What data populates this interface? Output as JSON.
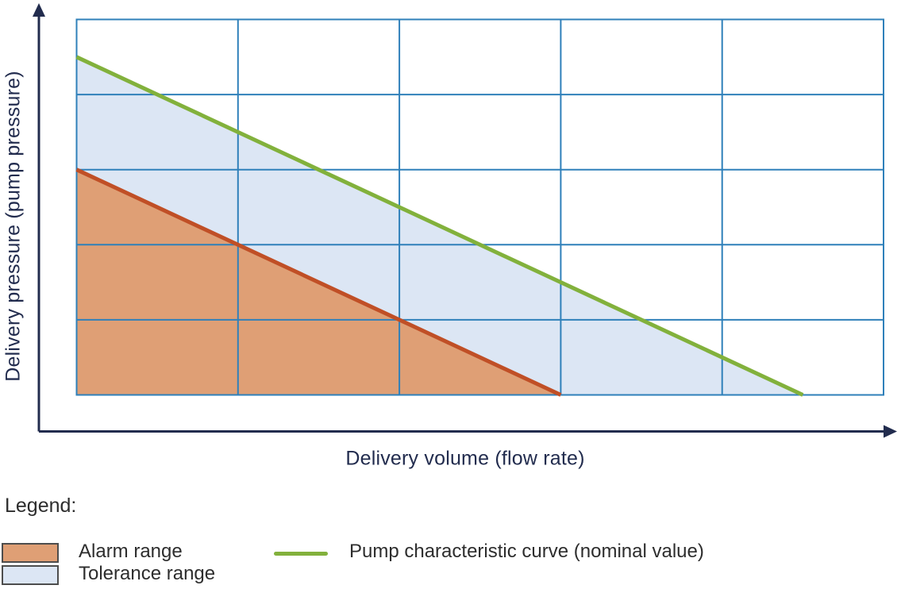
{
  "chart_data": {
    "type": "area",
    "xlabel": "Delivery volume (flow rate)",
    "ylabel": "Delivery pressure (pump pressure)",
    "xlim": [
      0,
      5
    ],
    "ylim": [
      0,
      5
    ],
    "grid": true,
    "grid_divisions_x": 5,
    "grid_divisions_y": 5,
    "tick_labels": "none",
    "legend_position": "below-chart",
    "series": [
      {
        "name": "Pump characteristic curve (nominal value)",
        "type": "line",
        "points": [
          [
            0,
            4.5
          ],
          [
            4.5,
            0
          ]
        ],
        "color": "#82b13c",
        "width": 5
      },
      {
        "name": "Alarm range upper boundary",
        "type": "line",
        "points": [
          [
            0,
            3
          ],
          [
            3,
            0
          ]
        ],
        "color": "#c04f26",
        "width": 5
      }
    ],
    "regions": [
      {
        "name": "Tolerance range",
        "points": [
          [
            0,
            0
          ],
          [
            0,
            4.5
          ],
          [
            4.5,
            0
          ]
        ],
        "fill": "#dce6f4"
      },
      {
        "name": "Alarm range",
        "points": [
          [
            0,
            0
          ],
          [
            0,
            3
          ],
          [
            3,
            0
          ]
        ],
        "fill": "#df9f75"
      }
    ],
    "colors": {
      "axis": "#222c4e",
      "grid": "#2f80ba"
    }
  },
  "legend": {
    "title": "Legend:",
    "text_color": "#2d2d2d",
    "items": [
      {
        "label": "Alarm range",
        "swatch_type": "area",
        "color": "#df9f75",
        "border_color": "#4d4d4d"
      },
      {
        "label": "Tolerance range",
        "swatch_type": "area",
        "color": "#dce6f4",
        "border_color": "#4d4d4d"
      },
      {
        "label": "Pump characteristic curve (nominal value)",
        "swatch_type": "line",
        "color": "#82b13c"
      }
    ]
  }
}
